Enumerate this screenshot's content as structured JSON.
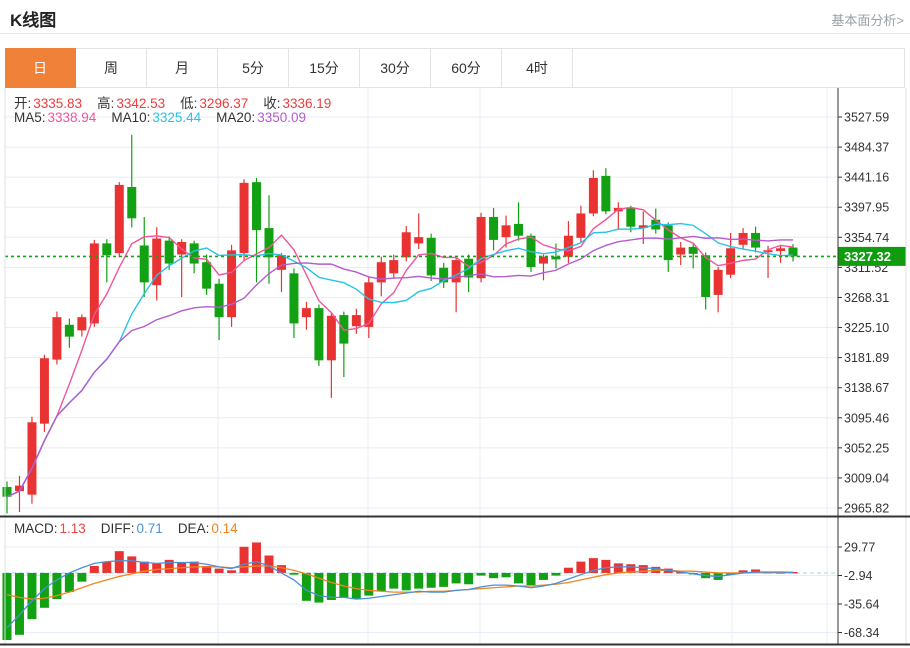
{
  "page": {
    "title": "K线图",
    "link": "基本面分析>"
  },
  "tabs": {
    "items": [
      "日",
      "周",
      "月",
      "5分",
      "15分",
      "30分",
      "60分",
      "4时"
    ],
    "selected": "日"
  },
  "ohlc": {
    "open_label": "开:",
    "open": "3335.83",
    "high_label": "高:",
    "high": "3342.53",
    "low_label": "低:",
    "low": "3296.37",
    "close_label": "收:",
    "close": "3336.19"
  },
  "ma": {
    "ma5_label": "MA5:",
    "ma5": "3338.94",
    "ma10_label": "MA10:",
    "ma10": "3325.44",
    "ma20_label": "MA20:",
    "ma20": "3350.09"
  },
  "macd_header": {
    "macd_label": "MACD:",
    "macd": "1.13",
    "diff_label": "DIFF:",
    "diff": "0.71",
    "dea_label": "DEA:",
    "dea": "0.14"
  },
  "current_price": "3327.32",
  "colors": {
    "up": "#e93333",
    "down": "#12a112",
    "ma5": "#f0569b",
    "ma10": "#28c3e6",
    "ma20": "#b55bd0",
    "diff": "#4a90d9",
    "dea": "#f0851f",
    "grid": "#e8eef6",
    "axis": "#333333",
    "separator": "#333333",
    "side_border": "#e0e0e0",
    "dotted": "#16a316",
    "badge": "#0f9d0f",
    "zero_line": "#9fd4f2",
    "tab_active": "#ef8138",
    "value_red": "#ef3b3b"
  },
  "chart_data": {
    "type": "candlestick",
    "title": "K线图",
    "price_axis_ticks": [
      3527.59,
      3484.37,
      3441.16,
      3397.95,
      3354.74,
      3311.52,
      3268.31,
      3225.1,
      3181.89,
      3138.67,
      3095.46,
      3052.25,
      3009.04,
      2965.82
    ],
    "macd_axis_ticks": [
      29.77,
      -2.94,
      -35.64,
      -68.34
    ],
    "ma_windows": [
      5,
      10,
      20
    ],
    "current_price": 3327.32,
    "candles": [
      [
        2996,
        3004,
        2958,
        2982
      ],
      [
        2990,
        3012,
        2960,
        2998
      ],
      [
        2985,
        3097,
        2972,
        3089
      ],
      [
        3087,
        3186,
        3075,
        3181
      ],
      [
        3179,
        3248,
        3172,
        3240
      ],
      [
        3229,
        3238,
        3196,
        3212
      ],
      [
        3221,
        3244,
        3212,
        3240
      ],
      [
        3231,
        3351,
        3226,
        3346
      ],
      [
        3346,
        3352,
        3290,
        3329
      ],
      [
        3332,
        3434,
        3326,
        3430
      ],
      [
        3427,
        3502,
        3369,
        3382
      ],
      [
        3343,
        3384,
        3269,
        3290
      ],
      [
        3286,
        3369,
        3264,
        3353
      ],
      [
        3350,
        3356,
        3308,
        3317
      ],
      [
        3330,
        3352,
        3269,
        3348
      ],
      [
        3346,
        3350,
        3303,
        3317
      ],
      [
        3319,
        3330,
        3272,
        3281
      ],
      [
        3288,
        3295,
        3207,
        3240
      ],
      [
        3240,
        3344,
        3226,
        3336
      ],
      [
        3332,
        3438,
        3322,
        3433
      ],
      [
        3434,
        3440,
        3290,
        3365
      ],
      [
        3368,
        3415,
        3288,
        3326
      ],
      [
        3308,
        3332,
        3276,
        3329
      ],
      [
        3303,
        3310,
        3210,
        3231
      ],
      [
        3240,
        3262,
        3222,
        3253
      ],
      [
        3253,
        3258,
        3170,
        3178
      ],
      [
        3178,
        3246,
        3124,
        3242
      ],
      [
        3243,
        3248,
        3154,
        3202
      ],
      [
        3227,
        3252,
        3216,
        3243
      ],
      [
        3226,
        3298,
        3210,
        3290
      ],
      [
        3290,
        3327,
        3270,
        3319
      ],
      [
        3303,
        3330,
        3295,
        3322
      ],
      [
        3326,
        3371,
        3320,
        3362
      ],
      [
        3346,
        3389,
        3338,
        3355
      ],
      [
        3354,
        3360,
        3292,
        3300
      ],
      [
        3311,
        3318,
        3282,
        3290
      ],
      [
        3290,
        3328,
        3247,
        3322
      ],
      [
        3324,
        3330,
        3276,
        3297
      ],
      [
        3296,
        3390,
        3290,
        3384
      ],
      [
        3384,
        3397,
        3336,
        3351
      ],
      [
        3355,
        3386,
        3340,
        3372
      ],
      [
        3374,
        3405,
        3350,
        3357
      ],
      [
        3357,
        3360,
        3305,
        3312
      ],
      [
        3317,
        3330,
        3293,
        3327
      ],
      [
        3327,
        3346,
        3310,
        3323
      ],
      [
        3327,
        3378,
        3318,
        3357
      ],
      [
        3354,
        3400,
        3348,
        3389
      ],
      [
        3389,
        3451,
        3385,
        3440
      ],
      [
        3443,
        3454,
        3388,
        3392
      ],
      [
        3392,
        3405,
        3365,
        3397
      ],
      [
        3397,
        3400,
        3362,
        3370
      ],
      [
        3368,
        3392,
        3345,
        3372
      ],
      [
        3380,
        3396,
        3360,
        3366
      ],
      [
        3372,
        3376,
        3305,
        3322
      ],
      [
        3330,
        3348,
        3315,
        3340
      ],
      [
        3341,
        3345,
        3310,
        3331
      ],
      [
        3329,
        3333,
        3251,
        3269
      ],
      [
        3272,
        3312,
        3247,
        3308
      ],
      [
        3301,
        3361,
        3296,
        3339
      ],
      [
        3344,
        3368,
        3338,
        3361
      ],
      [
        3361,
        3370,
        3333,
        3340
      ],
      [
        3335.83,
        3342.53,
        3296.37,
        3336.19
      ],
      [
        3335,
        3343,
        3318,
        3339
      ],
      [
        3340,
        3345,
        3320,
        3327.32
      ]
    ],
    "macd": {
      "hist": [
        -77,
        -71,
        -53,
        -40,
        -30,
        -22,
        -10,
        8,
        13,
        25,
        19,
        13,
        11,
        15,
        12,
        13,
        8,
        5,
        3,
        30,
        35,
        20,
        9,
        -2,
        -32,
        -34,
        -31,
        -28,
        -30,
        -26,
        -21,
        -18,
        -20,
        -18,
        -17,
        -16,
        -12,
        -13,
        -3,
        -6,
        -5,
        -12,
        -14,
        -8,
        -3,
        6,
        13,
        17,
        15,
        11,
        10,
        9,
        7,
        5,
        1,
        -1,
        -6,
        -8,
        -2,
        3,
        4,
        1,
        0.8,
        1.13
      ],
      "diff": [
        -63,
        -48,
        -32,
        -18,
        -8,
        0,
        6,
        11,
        13,
        14,
        14,
        12,
        11,
        12,
        12,
        12,
        10,
        7,
        5,
        10,
        13,
        8,
        0,
        -8,
        -20,
        -26,
        -28,
        -28,
        -30,
        -29,
        -27,
        -25,
        -23,
        -21,
        -22,
        -22,
        -20,
        -19,
        -16,
        -14,
        -14,
        -15,
        -17,
        -15,
        -12,
        -7,
        -2,
        3,
        6,
        7,
        7,
        6,
        5,
        3,
        1,
        -1,
        -3,
        -4,
        -2,
        0,
        1,
        1,
        1,
        0.71
      ],
      "dea": [
        -25,
        -28,
        -30,
        -29,
        -26,
        -22,
        -17,
        -12,
        -8,
        -4,
        -1,
        2,
        4,
        5,
        6,
        7,
        7,
        7,
        6,
        7,
        8,
        8,
        6,
        3,
        -1,
        -6,
        -11,
        -15,
        -18,
        -20,
        -21,
        -22,
        -22,
        -22,
        -21,
        -21,
        -20,
        -19,
        -18,
        -17,
        -16,
        -15,
        -15,
        -14,
        -13,
        -11,
        -8,
        -5,
        -2,
        0,
        1,
        2,
        3,
        3,
        2,
        2,
        1,
        0,
        0,
        0,
        0.2,
        0.2,
        0.2,
        0.14
      ]
    }
  }
}
